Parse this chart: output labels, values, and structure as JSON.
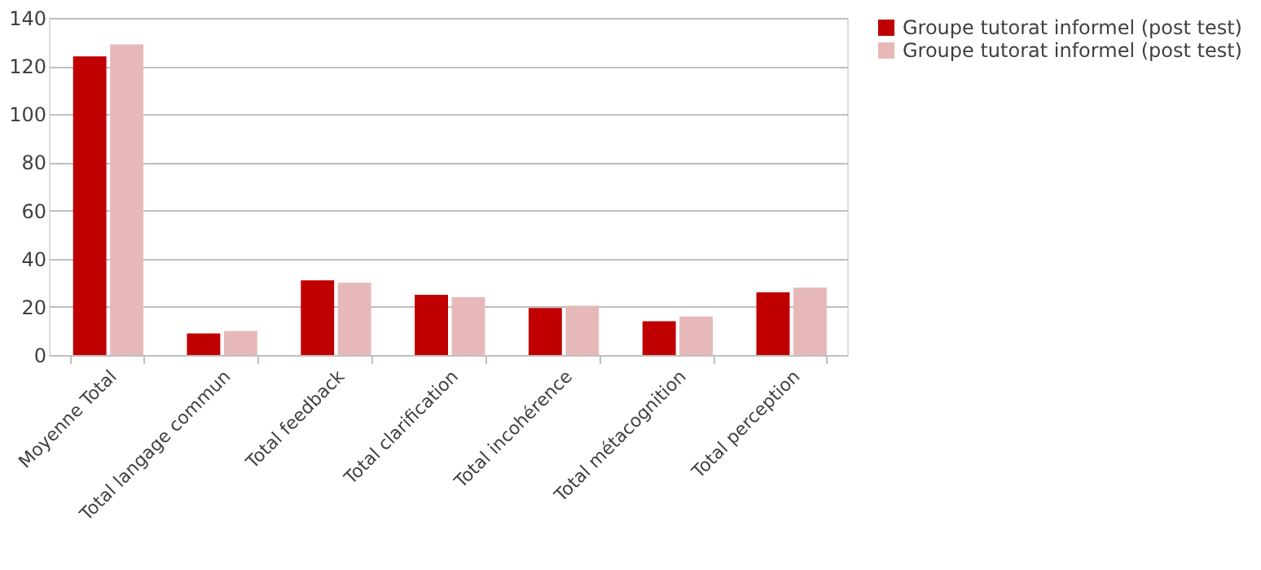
{
  "chart_data": {
    "type": "bar",
    "categories": [
      "Moyenne Total",
      "Total langage commun",
      "Total feedback",
      "Total clarification",
      "Total incohérence",
      "Total métacognition",
      "Total perception"
    ],
    "series": [
      {
        "name": "Groupe tutorat informel (post test)",
        "color": "#c00000",
        "values": [
          124,
          9,
          31,
          25,
          19.5,
          14,
          26
        ]
      },
      {
        "name": "Groupe tutorat informel (post test)",
        "color": "#e6b9b8",
        "values": [
          129,
          10,
          30,
          24,
          20.5,
          16,
          28
        ]
      }
    ],
    "ylim": [
      0,
      140
    ],
    "yticks": [
      0,
      20,
      40,
      60,
      80,
      100,
      120,
      140
    ],
    "grid": "y",
    "legend": "right"
  }
}
